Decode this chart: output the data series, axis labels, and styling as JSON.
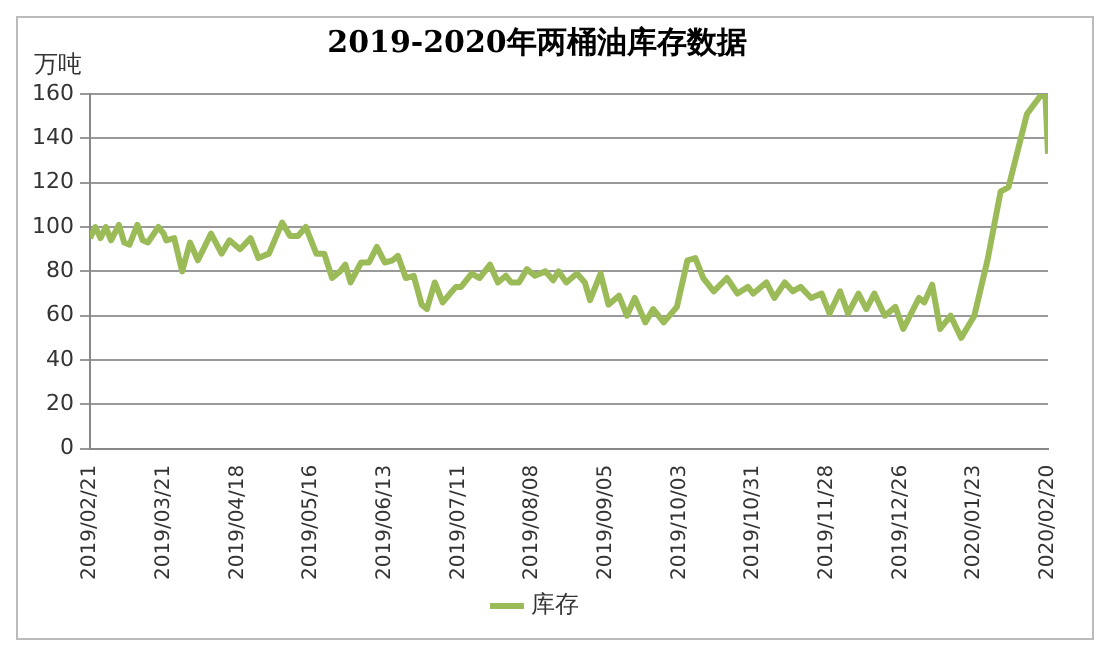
{
  "chart_data": {
    "type": "line",
    "title": "2019-2020年两桶油库存数据",
    "ylabel": "万吨",
    "x": [
      "2019-02-21",
      "2019-02-23",
      "2019-02-25",
      "2019-02-27",
      "2019-03-01",
      "2019-03-04",
      "2019-03-06",
      "2019-03-08",
      "2019-03-11",
      "2019-03-13",
      "2019-03-15",
      "2019-03-19",
      "2019-03-21",
      "2019-03-22",
      "2019-03-25",
      "2019-03-28",
      "2019-03-31",
      "2019-04-03",
      "2019-04-08",
      "2019-04-12",
      "2019-04-15",
      "2019-04-19",
      "2019-04-23",
      "2019-04-26",
      "2019-04-30",
      "2019-05-05",
      "2019-05-08",
      "2019-05-11",
      "2019-05-14",
      "2019-05-18",
      "2019-05-21",
      "2019-05-24",
      "2019-05-27",
      "2019-05-29",
      "2019-05-31",
      "2019-06-04",
      "2019-06-07",
      "2019-06-10",
      "2019-06-13",
      "2019-06-16",
      "2019-06-18",
      "2019-06-21",
      "2019-06-24",
      "2019-06-27",
      "2019-06-29",
      "2019-07-02",
      "2019-07-05",
      "2019-07-10",
      "2019-07-12",
      "2019-07-16",
      "2019-07-19",
      "2019-07-23",
      "2019-07-26",
      "2019-07-29",
      "2019-07-31",
      "2019-08-03",
      "2019-08-06",
      "2019-08-09",
      "2019-08-13",
      "2019-08-16",
      "2019-08-18",
      "2019-08-21",
      "2019-08-25",
      "2019-08-28",
      "2019-08-30",
      "2019-09-03",
      "2019-09-06",
      "2019-09-10",
      "2019-09-13",
      "2019-09-16",
      "2019-09-20",
      "2019-09-23",
      "2019-09-27",
      "2019-10-02",
      "2019-10-06",
      "2019-10-09",
      "2019-10-12",
      "2019-10-16",
      "2019-10-21",
      "2019-10-25",
      "2019-10-29",
      "2019-10-31",
      "2019-11-05",
      "2019-11-08",
      "2019-11-12",
      "2019-11-15",
      "2019-11-18",
      "2019-11-22",
      "2019-11-26",
      "2019-11-29",
      "2019-12-03",
      "2019-12-06",
      "2019-12-10",
      "2019-12-13",
      "2019-12-16",
      "2019-12-20",
      "2019-12-24",
      "2019-12-27",
      "2020-01-02",
      "2020-01-04",
      "2020-01-07",
      "2020-01-10",
      "2020-01-14",
      "2020-01-18",
      "2020-01-23",
      "2020-01-28",
      "2020-02-02",
      "2020-02-05",
      "2020-02-12",
      "2020-02-17",
      "2020-02-19",
      "2020-02-20"
    ],
    "series": [
      {
        "name": "库存",
        "color": "#9bbb59",
        "values": [
          95,
          100,
          95,
          100,
          94,
          101,
          93,
          92,
          101,
          94,
          93,
          100,
          97,
          94,
          95,
          80,
          93,
          85,
          97,
          88,
          94,
          90,
          95,
          86,
          88,
          102,
          96,
          96,
          100,
          88,
          88,
          77,
          80,
          83,
          75,
          84,
          84,
          91,
          84,
          85,
          87,
          77,
          78,
          65,
          63,
          75,
          66,
          73,
          73,
          79,
          77,
          83,
          75,
          78,
          75,
          75,
          81,
          78,
          80,
          76,
          80,
          75,
          79,
          75,
          67,
          79,
          65,
          69,
          60,
          68,
          57,
          63,
          57,
          64,
          85,
          86,
          77,
          71,
          77,
          70,
          73,
          70,
          75,
          68,
          75,
          71,
          73,
          68,
          70,
          61,
          71,
          61,
          70,
          63,
          70,
          60,
          64,
          54,
          68,
          66,
          74,
          54,
          60,
          50,
          60,
          85,
          116,
          118,
          151,
          159,
          160,
          133
        ]
      }
    ],
    "xlim": [
      "2019-02-21",
      "2020-02-20"
    ],
    "xticks": [
      {
        "value": "2019-02-21",
        "label": "2019/02/21"
      },
      {
        "value": "2019-03-21",
        "label": "2019/03/21"
      },
      {
        "value": "2019-04-18",
        "label": "2019/04/18"
      },
      {
        "value": "2019-05-16",
        "label": "2019/05/16"
      },
      {
        "value": "2019-06-13",
        "label": "2019/06/13"
      },
      {
        "value": "2019-07-11",
        "label": "2019/07/11"
      },
      {
        "value": "2019-08-08",
        "label": "2019/08/08"
      },
      {
        "value": "2019-09-05",
        "label": "2019/09/05"
      },
      {
        "value": "2019-10-03",
        "label": "2019/10/03"
      },
      {
        "value": "2019-10-31",
        "label": "2019/10/31"
      },
      {
        "value": "2019-11-28",
        "label": "2019/11/28"
      },
      {
        "value": "2019-12-26",
        "label": "2019/12/26"
      },
      {
        "value": "2020-01-23",
        "label": "2020/01/23"
      },
      {
        "value": "2020-02-20",
        "label": "2020/02/20"
      }
    ],
    "ylim": [
      0,
      160
    ],
    "yticks": [
      0,
      20,
      40,
      60,
      80,
      100,
      120,
      140,
      160
    ],
    "grid": "y",
    "legend": "bottom",
    "marker": "none",
    "line_style": "solid"
  }
}
